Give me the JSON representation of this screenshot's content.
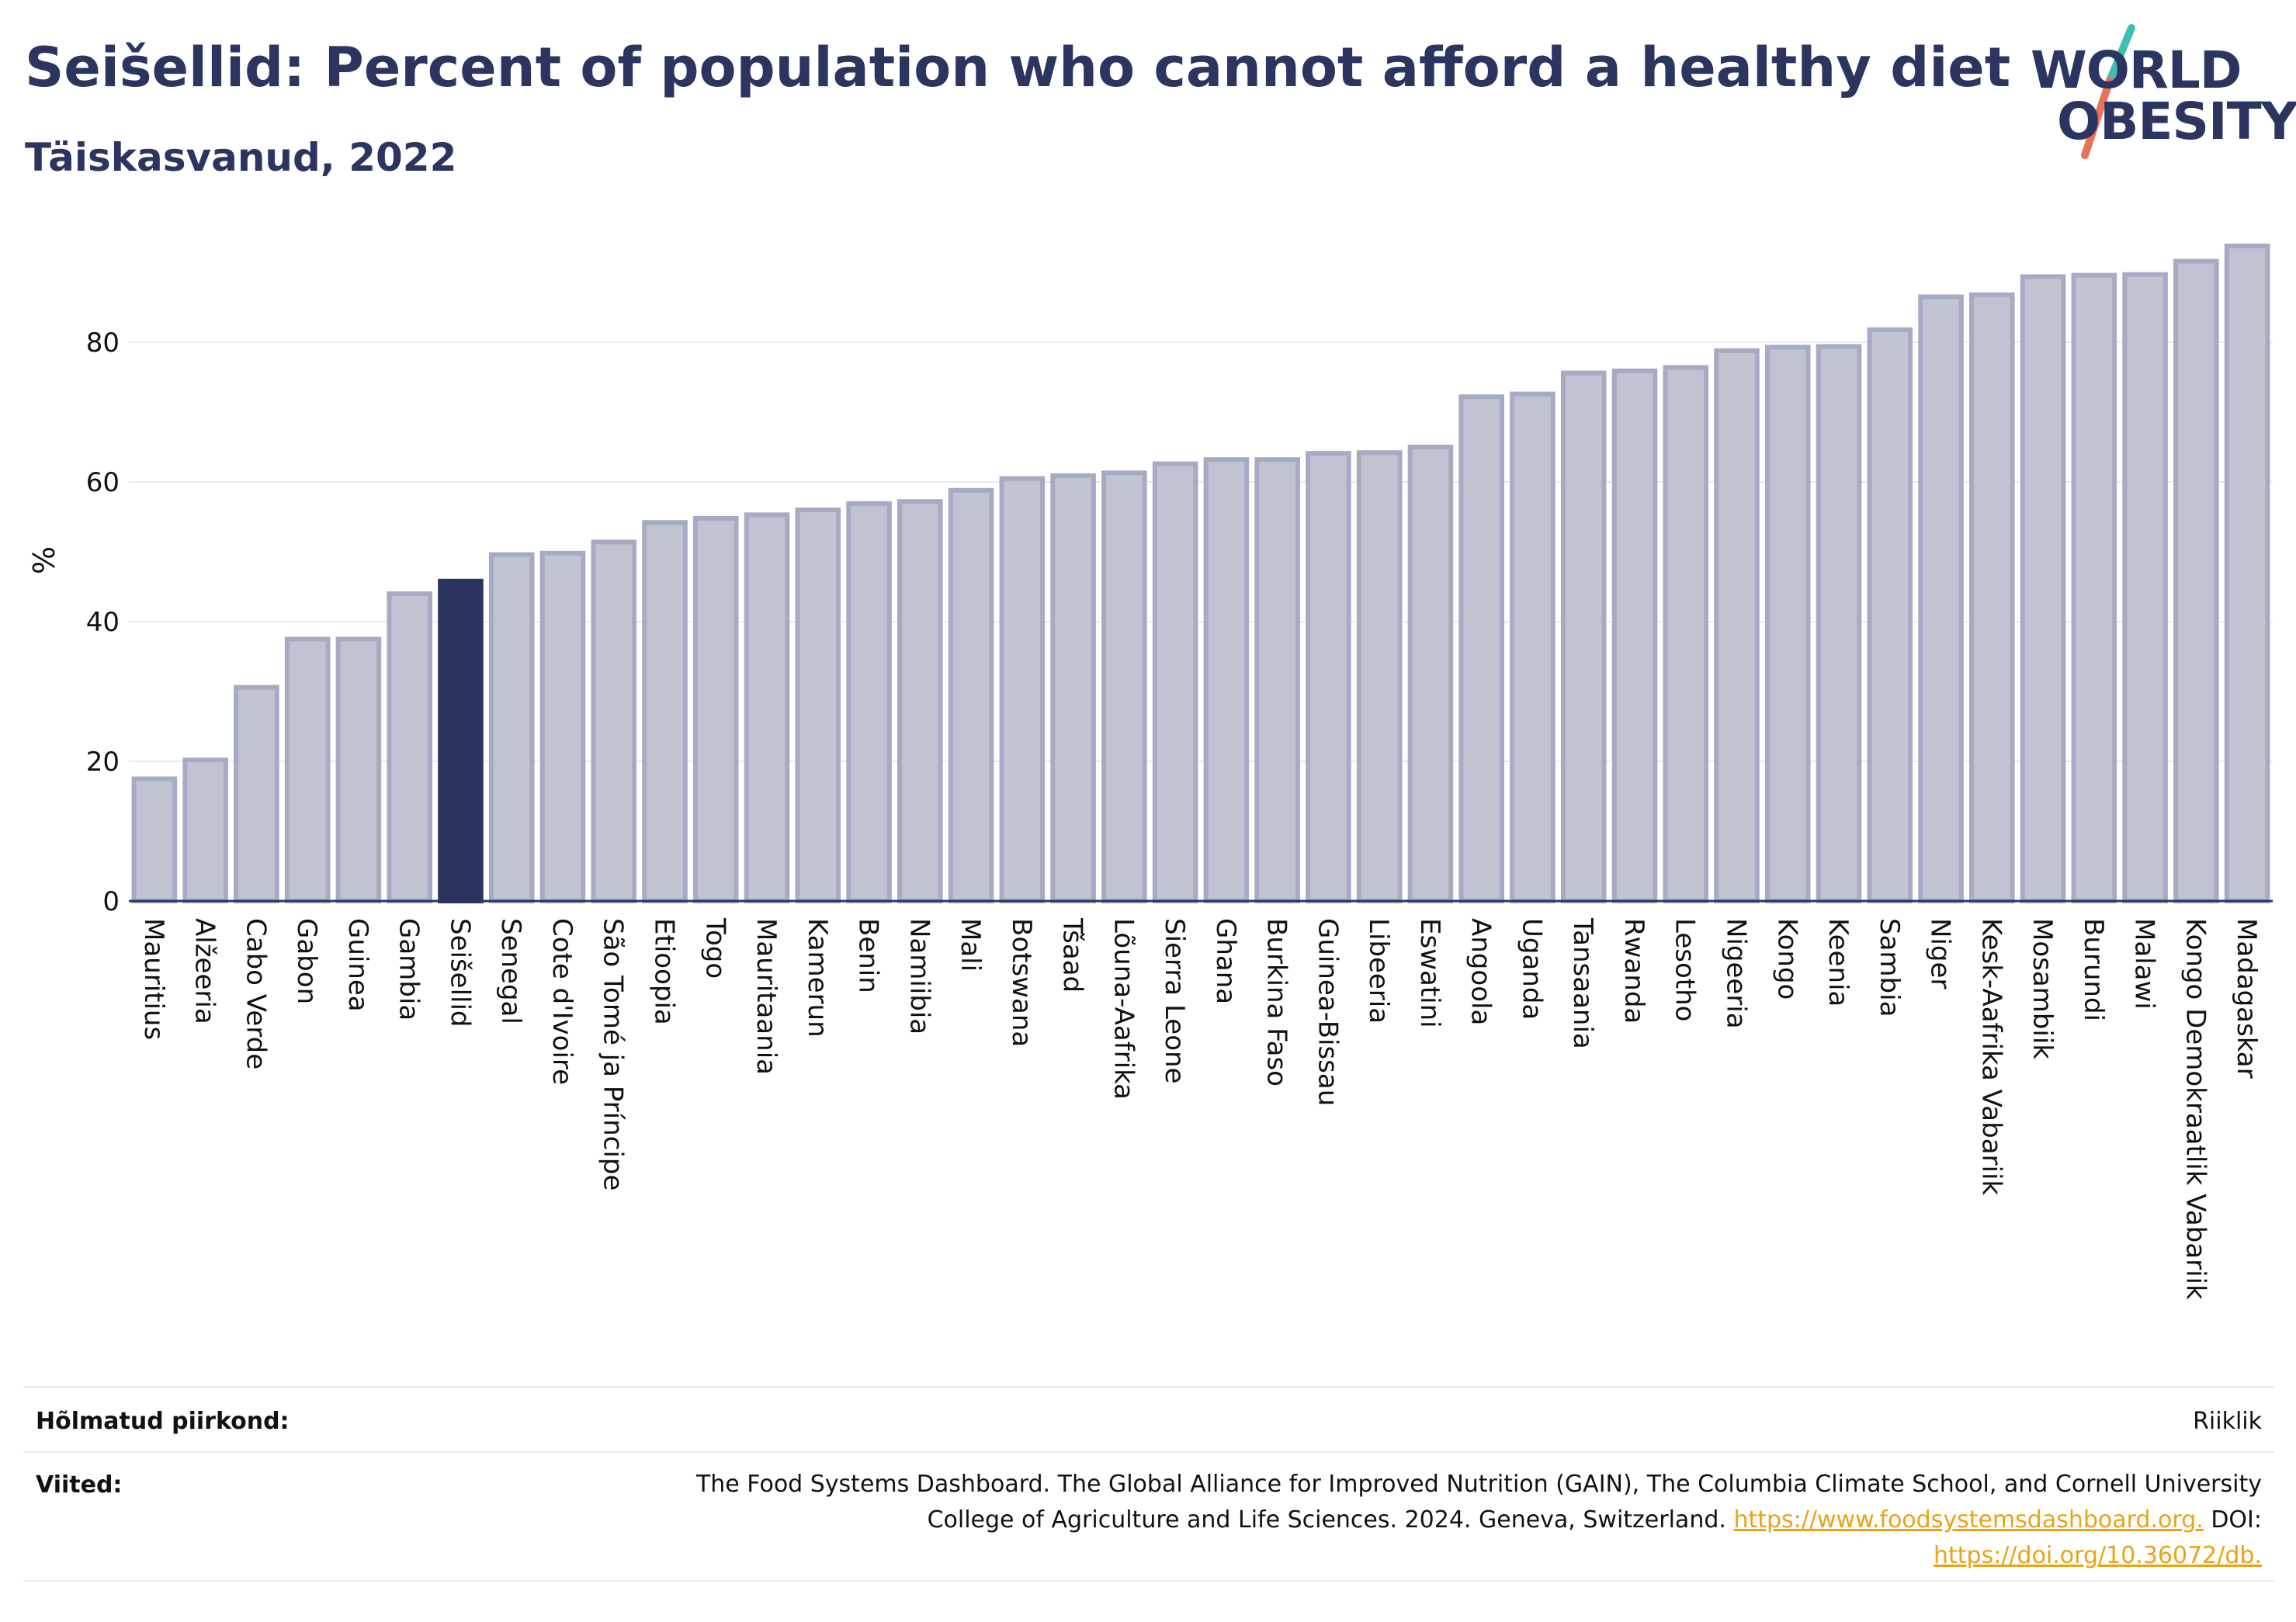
{
  "header": {
    "title": "Seišellid: Percent of population who cannot afford a healthy diet",
    "subtitle": "Täiskasvanud, 2022"
  },
  "logo": {
    "line1": "WORLD",
    "line2": "OBESITY",
    "accent_colors": [
      "#3fbfb4",
      "#e8735a"
    ]
  },
  "colors": {
    "bar_fill": "#bfc3d2",
    "bar_stroke": "#a6abc3",
    "highlight": "#2b3560",
    "grid": "#e9eaf2",
    "axis_line": "#2b3560",
    "link": "#e8a317"
  },
  "chart_data": {
    "type": "bar",
    "title": "Seišellid: Percent of population who cannot afford a healthy diet",
    "subtitle": "Täiskasvanud, 2022",
    "ylabel": "%",
    "xlabel": "",
    "ylim": [
      0,
      96
    ],
    "yticks": [
      0,
      20,
      40,
      60,
      80
    ],
    "grid": true,
    "highlight": "Seišellid",
    "categories": [
      "Mauritius",
      "Alžeeria",
      "Cabo Verde",
      "Gabon",
      "Guinea",
      "Gambia",
      "Seišellid",
      "Senegal",
      "Cote d'Ivoire",
      "São Tomé ja Príncipe",
      "Etioopia",
      "Togo",
      "Mauritaania",
      "Kamerun",
      "Benin",
      "Namiibia",
      "Mali",
      "Botswana",
      "Tšaad",
      "Lõuna-Aafrika",
      "Sierra Leone",
      "Ghana",
      "Burkina Faso",
      "Guinea-Bissau",
      "Libeeria",
      "Eswatini",
      "Angoola",
      "Uganda",
      "Tansaania",
      "Rwanda",
      "Lesotho",
      "Nigeeria",
      "Kongo",
      "Keenia",
      "Sambia",
      "Niger",
      "Kesk-Aafrika Vabariik",
      "Mosambiik",
      "Burundi",
      "Malawi",
      "Kongo Demokraatlik Vabariik",
      "Madagaskar"
    ],
    "values": [
      17.5,
      20.2,
      30.6,
      37.5,
      37.5,
      44.0,
      45.8,
      49.6,
      49.8,
      51.4,
      54.2,
      54.8,
      55.3,
      56.0,
      56.9,
      57.2,
      58.8,
      60.5,
      60.9,
      61.3,
      62.6,
      63.2,
      63.2,
      64.1,
      64.2,
      65.0,
      72.2,
      72.6,
      75.6,
      75.9,
      76.4,
      78.8,
      79.3,
      79.4,
      81.8,
      86.5,
      86.8,
      89.4,
      89.6,
      89.7,
      91.6,
      93.8
    ]
  },
  "footer": {
    "region_label": "Hõlmatud piirkond:",
    "region_value": "Riiklik",
    "refs_label": "Viited:",
    "refs_line1": "The Food Systems Dashboard. The Global Alliance for Improved Nutrition (GAIN), The Columbia Climate School, and Cornell University",
    "refs_line2": "College of Agriculture and Life Sciences. 2024. Geneva, Switzerland.",
    "refs_link1": "https://www.foodsystemsdashboard.org.",
    "refs_doi_label": "DOI:",
    "refs_link2": "https://doi.org/10.36072/db."
  }
}
